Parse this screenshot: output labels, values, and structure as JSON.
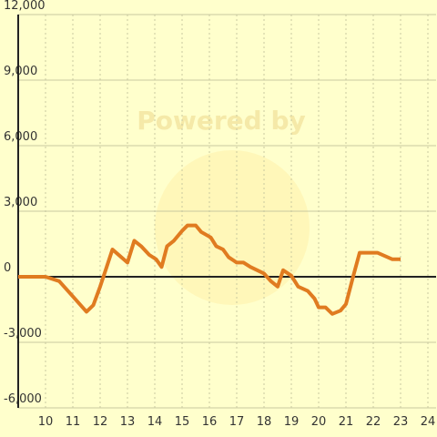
{
  "chart_data": {
    "type": "line",
    "watermark": "Powered by",
    "x": [
      9,
      10,
      10.5,
      11,
      11.5,
      11.75,
      12,
      12.2,
      12.45,
      13,
      13.25,
      13.5,
      13.8,
      14.05,
      14.25,
      14.45,
      14.7,
      15,
      15.2,
      15.5,
      15.7,
      16.05,
      16.25,
      16.5,
      16.7,
      17,
      17.25,
      17.5,
      18,
      18.25,
      18.5,
      18.7,
      19,
      19.25,
      19.6,
      19.85,
      20,
      20.25,
      20.5,
      20.8,
      21,
      21.25,
      21.5,
      22.15,
      22.7,
      23
    ],
    "series": [
      {
        "color": "#e07b20",
        "values": [
          0,
          0,
          -200,
          -900,
          -1600,
          -1300,
          -450,
          300,
          1250,
          650,
          1650,
          1400,
          1000,
          800,
          450,
          1400,
          1650,
          2100,
          2350,
          2350,
          2050,
          1800,
          1400,
          1250,
          900,
          650,
          650,
          450,
          150,
          -200,
          -450,
          300,
          50,
          -450,
          -650,
          -1000,
          -1400,
          -1400,
          -1700,
          -1550,
          -1250,
          -50,
          1100,
          1100,
          800,
          800
        ]
      }
    ],
    "xlim": [
      9,
      24.3
    ],
    "xticks": [
      10,
      11,
      12,
      13,
      14,
      15,
      16,
      17,
      18,
      19,
      20,
      21,
      22,
      23,
      24
    ],
    "ylim": [
      -6000,
      12000
    ],
    "yticks": [
      {
        "value": -6000,
        "label": "-6,000"
      },
      {
        "value": -3000,
        "label": "-3,000"
      },
      0,
      {
        "value": 3000,
        "label": "3,000"
      },
      {
        "value": 6000,
        "label": "6,000"
      },
      {
        "value": 9000,
        "label": "9,000"
      },
      {
        "value": 12000,
        "label": "12,000"
      }
    ],
    "grid": true
  }
}
